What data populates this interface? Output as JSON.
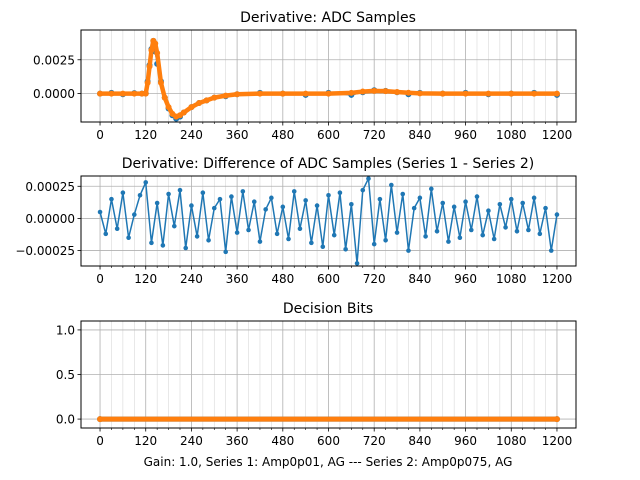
{
  "colors": {
    "series1": "#1f77b4",
    "series2": "#ff7f0e"
  },
  "chart_data": [
    {
      "type": "line",
      "title": "Derivative: ADC Samples",
      "xlim": [
        -50,
        1250
      ],
      "ylim": [
        -0.0021,
        0.0047
      ],
      "xticks": [
        0,
        120,
        240,
        360,
        480,
        600,
        720,
        840,
        960,
        1080,
        1200
      ],
      "xtick_labels": [
        "0",
        "120",
        "240",
        "360",
        "480",
        "600",
        "720",
        "840",
        "960",
        "1080",
        "1200"
      ],
      "yticks": [
        0,
        0.0025
      ],
      "ytick_labels": [
        "0.0000",
        "0.0025"
      ],
      "grid": true,
      "x": [
        0,
        30,
        60,
        90,
        110,
        120,
        125,
        130,
        135,
        140,
        145,
        150,
        160,
        170,
        180,
        190,
        200,
        210,
        220,
        240,
        260,
        280,
        300,
        330,
        360,
        420,
        480,
        540,
        600,
        660,
        690,
        720,
        750,
        780,
        810,
        840,
        900,
        960,
        1020,
        1080,
        1140,
        1200
      ],
      "series": [
        {
          "values": [
            0,
            5e-05,
            -5e-05,
            3e-05,
            0,
            2e-05,
            0.0009,
            0.0021,
            0.0033,
            0.0039,
            0.0031,
            0.0022,
            0.0009,
            -0.0003,
            -0.0011,
            -0.0016,
            -0.00185,
            -0.0017,
            -0.0014,
            -0.001,
            -0.0007,
            -0.0005,
            -0.0003,
            -0.0002,
            -5e-05,
            5e-05,
            0,
            -0.0001,
            5e-05,
            -0.0001,
            0.0001,
            0.00025,
            0.0002,
            0.0001,
            -5e-05,
            5e-05,
            0,
            5e-05,
            -5e-05,
            0,
            5e-05,
            -0.0001
          ]
        },
        {
          "values": [
            0,
            0,
            0,
            0,
            0,
            0,
            0.0008,
            0.002,
            0.0032,
            0.0039,
            0.0037,
            0.003,
            0.0008,
            -0.0003,
            -0.001,
            -0.0015,
            -0.0017,
            -0.0016,
            -0.0014,
            -0.001,
            -0.0007,
            -0.0005,
            -0.0003,
            -0.00015,
            -5e-05,
            0,
            0,
            0,
            0,
            5e-05,
            0.00015,
            0.0002,
            0.00018,
            0.00012,
            6e-05,
            2e-05,
            0,
            0,
            0,
            0,
            0,
            0
          ]
        }
      ]
    },
    {
      "type": "line",
      "title": "Derivative: Difference of ADC Samples (Series 1 - Series 2)",
      "xlim": [
        -50,
        1250
      ],
      "ylim": [
        -0.00037,
        0.00033
      ],
      "xticks": [
        0,
        120,
        240,
        360,
        480,
        600,
        720,
        840,
        960,
        1080,
        1200
      ],
      "xtick_labels": [
        "0",
        "120",
        "240",
        "360",
        "480",
        "600",
        "720",
        "840",
        "960",
        "1080",
        "1200"
      ],
      "yticks": [
        -0.00025,
        0,
        0.00025
      ],
      "ytick_labels": [
        "−0.00025",
        "0.00000",
        "0.00025"
      ],
      "grid": true,
      "x_start": 0,
      "x_step": 15,
      "series": [
        {
          "values": [
            5e-05,
            -0.00012,
            0.00015,
            -8e-05,
            0.0002,
            -0.00015,
            3e-05,
            0.00018,
            0.00028,
            -0.00019,
            0.00012,
            -0.00021,
            0.00019,
            -6e-05,
            0.00022,
            -0.00023,
            0.0001,
            -0.00014,
            0.0002,
            -0.00017,
            8e-05,
            0.00015,
            -0.00026,
            0.00017,
            -0.00011,
            0.00021,
            -9e-05,
            0.00013,
            -0.00018,
            7e-05,
            0.00016,
            -0.00012,
            9e-05,
            -0.00016,
            0.00021,
            -8e-05,
            0.00014,
            -0.00019,
            0.0001,
            -0.00022,
            0.00018,
            -0.00013,
            0.0002,
            -0.00024,
            0.00011,
            -0.00035,
            0.00022,
            0.00031,
            -0.0002,
            0.00015,
            -0.00017,
            0.00026,
            -0.00011,
            0.00019,
            -0.00025,
            8e-05,
            0.00016,
            -0.00014,
            0.00023,
            -0.0001,
            0.00012,
            -0.00018,
            9e-05,
            -0.00015,
            0.00013,
            -9e-05,
            0.00017,
            -0.00013,
            6e-05,
            -0.00016,
            0.00011,
            -7e-05,
            0.00015,
            -0.0001,
            0.00012,
            -9e-05,
            0.00016,
            -0.00012,
            8e-05,
            -0.00025,
            3e-05
          ]
        }
      ]
    },
    {
      "type": "line",
      "title": "Decision Bits",
      "xlabel": "Gain: 1.0, Series 1: Amp0p01, AG --- Series 2: Amp0p075, AG",
      "xlim": [
        -50,
        1250
      ],
      "ylim": [
        -0.1,
        1.1
      ],
      "xticks": [
        0,
        120,
        240,
        360,
        480,
        600,
        720,
        840,
        960,
        1080,
        1200
      ],
      "xtick_labels": [
        "0",
        "120",
        "240",
        "360",
        "480",
        "600",
        "720",
        "840",
        "960",
        "1080",
        "1200"
      ],
      "yticks": [
        0,
        0.5,
        1.0
      ],
      "ytick_labels": [
        "0.0",
        "0.5",
        "1.0"
      ],
      "grid": true,
      "x": [
        0,
        1200
      ],
      "series": [
        {
          "values": [
            0,
            0
          ]
        },
        {
          "values": [
            0,
            0
          ]
        }
      ]
    }
  ]
}
